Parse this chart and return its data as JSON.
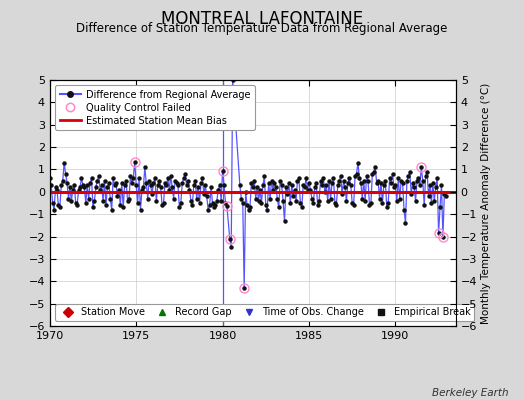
{
  "title": "MONTREAL LAFONTAINE",
  "subtitle": "Difference of Station Temperature Data from Regional Average",
  "ylabel": "Monthly Temperature Anomaly Difference (°C)",
  "xlim": [
    1970,
    1993.5
  ],
  "ylim": [
    -6,
    5
  ],
  "yticks": [
    -6,
    -5,
    -4,
    -3,
    -2,
    -1,
    0,
    1,
    2,
    3,
    4,
    5
  ],
  "xticks": [
    1970,
    1975,
    1980,
    1985,
    1990
  ],
  "bias_line_y": 0.0,
  "bias_line_color": "#dd0000",
  "line_color": "#5555ff",
  "dot_color": "#111111",
  "qc_fail_color": "#ff88cc",
  "background_color": "#d8d8d8",
  "plot_bg_color": "#ffffff",
  "title_fontsize": 12,
  "subtitle_fontsize": 8.5,
  "tick_fontsize": 8,
  "ylabel_fontsize": 7.5,
  "watermark": "Berkeley Earth",
  "legend1_entries": [
    {
      "label": "Difference from Regional Average"
    },
    {
      "label": "Quality Control Failed"
    },
    {
      "label": "Estimated Station Mean Bias"
    }
  ],
  "legend2_entries": [
    {
      "label": "Station Move",
      "marker": "D",
      "color": "#cc0000"
    },
    {
      "label": "Record Gap",
      "marker": "^",
      "color": "#007700"
    },
    {
      "label": "Time of Obs. Change",
      "marker": "v",
      "color": "#3333cc"
    },
    {
      "label": "Empirical Break",
      "marker": "s",
      "color": "#111111"
    }
  ],
  "time_of_obs_change_x": 1980.0,
  "qc_fail_points": [
    [
      1974.917,
      1.35
    ],
    [
      1980.0,
      0.95
    ],
    [
      1980.25,
      -0.65
    ],
    [
      1980.417,
      -2.1
    ],
    [
      1981.25,
      -4.3
    ],
    [
      1991.5,
      1.1
    ],
    [
      1992.5,
      -1.85
    ],
    [
      1992.75,
      -2.0
    ]
  ],
  "monthly_data": [
    [
      1970.0,
      0.6
    ],
    [
      1970.083,
      0.3
    ],
    [
      1970.167,
      -0.5
    ],
    [
      1970.25,
      -0.8
    ],
    [
      1970.333,
      0.2
    ],
    [
      1970.417,
      0.1
    ],
    [
      1970.5,
      -0.6
    ],
    [
      1970.583,
      -0.7
    ],
    [
      1970.667,
      0.3
    ],
    [
      1970.75,
      0.5
    ],
    [
      1970.833,
      1.3
    ],
    [
      1970.917,
      0.8
    ],
    [
      1971.0,
      0.4
    ],
    [
      1971.083,
      -0.3
    ],
    [
      1971.167,
      0.2
    ],
    [
      1971.25,
      -0.4
    ],
    [
      1971.333,
      0.1
    ],
    [
      1971.417,
      0.3
    ],
    [
      1971.5,
      -0.5
    ],
    [
      1971.583,
      -0.6
    ],
    [
      1971.667,
      0.1
    ],
    [
      1971.75,
      0.2
    ],
    [
      1971.833,
      0.6
    ],
    [
      1971.917,
      0.3
    ],
    [
      1972.0,
      0.2
    ],
    [
      1972.083,
      -0.5
    ],
    [
      1972.167,
      0.3
    ],
    [
      1972.25,
      -0.3
    ],
    [
      1972.333,
      0.4
    ],
    [
      1972.417,
      0.6
    ],
    [
      1972.5,
      -0.7
    ],
    [
      1972.583,
      -0.4
    ],
    [
      1972.667,
      0.2
    ],
    [
      1972.75,
      0.5
    ],
    [
      1972.833,
      0.7
    ],
    [
      1972.917,
      0.1
    ],
    [
      1973.0,
      0.3
    ],
    [
      1973.083,
      -0.4
    ],
    [
      1973.167,
      0.5
    ],
    [
      1973.25,
      -0.6
    ],
    [
      1973.333,
      0.2
    ],
    [
      1973.417,
      0.4
    ],
    [
      1973.5,
      -0.3
    ],
    [
      1973.583,
      -0.8
    ],
    [
      1973.667,
      0.6
    ],
    [
      1973.75,
      0.3
    ],
    [
      1973.833,
      0.4
    ],
    [
      1973.917,
      -0.2
    ],
    [
      1974.0,
      0.1
    ],
    [
      1974.083,
      -0.6
    ],
    [
      1974.167,
      0.4
    ],
    [
      1974.25,
      -0.7
    ],
    [
      1974.333,
      0.3
    ],
    [
      1974.417,
      0.5
    ],
    [
      1974.5,
      -0.4
    ],
    [
      1974.583,
      -0.3
    ],
    [
      1974.667,
      0.7
    ],
    [
      1974.75,
      0.4
    ],
    [
      1974.833,
      0.6
    ],
    [
      1974.917,
      1.35
    ],
    [
      1975.0,
      0.3
    ],
    [
      1975.083,
      -0.5
    ],
    [
      1975.167,
      0.6
    ],
    [
      1975.25,
      -0.8
    ],
    [
      1975.333,
      0.1
    ],
    [
      1975.417,
      0.2
    ],
    [
      1975.5,
      1.1
    ],
    [
      1975.583,
      0.4
    ],
    [
      1975.667,
      -0.3
    ],
    [
      1975.75,
      0.5
    ],
    [
      1975.833,
      0.3
    ],
    [
      1975.917,
      -0.1
    ],
    [
      1976.0,
      0.4
    ],
    [
      1976.083,
      0.6
    ],
    [
      1976.167,
      -0.4
    ],
    [
      1976.25,
      0.3
    ],
    [
      1976.333,
      0.5
    ],
    [
      1976.417,
      0.2
    ],
    [
      1976.5,
      -0.6
    ],
    [
      1976.583,
      -0.5
    ],
    [
      1976.667,
      0.4
    ],
    [
      1976.75,
      0.3
    ],
    [
      1976.833,
      0.6
    ],
    [
      1976.917,
      0.1
    ],
    [
      1977.0,
      0.7
    ],
    [
      1977.083,
      0.2
    ],
    [
      1977.167,
      -0.3
    ],
    [
      1977.25,
      0.5
    ],
    [
      1977.333,
      0.4
    ],
    [
      1977.417,
      0.3
    ],
    [
      1977.5,
      -0.7
    ],
    [
      1977.583,
      -0.5
    ],
    [
      1977.667,
      0.4
    ],
    [
      1977.75,
      0.6
    ],
    [
      1977.833,
      0.8
    ],
    [
      1977.917,
      0.3
    ],
    [
      1978.0,
      0.5
    ],
    [
      1978.083,
      0.1
    ],
    [
      1978.167,
      -0.4
    ],
    [
      1978.25,
      -0.6
    ],
    [
      1978.333,
      0.3
    ],
    [
      1978.417,
      0.5
    ],
    [
      1978.5,
      -0.3
    ],
    [
      1978.583,
      0.2
    ],
    [
      1978.667,
      -0.5
    ],
    [
      1978.75,
      0.4
    ],
    [
      1978.833,
      0.6
    ],
    [
      1978.917,
      -0.1
    ],
    [
      1979.0,
      0.3
    ],
    [
      1979.083,
      -0.2
    ],
    [
      1979.167,
      -0.8
    ],
    [
      1979.25,
      -0.6
    ],
    [
      1979.333,
      0.2
    ],
    [
      1979.417,
      -0.5
    ],
    [
      1979.5,
      -0.7
    ],
    [
      1979.583,
      -0.6
    ],
    [
      1979.667,
      -0.4
    ],
    [
      1979.75,
      0.1
    ],
    [
      1979.833,
      0.3
    ],
    [
      1979.917,
      -0.4
    ],
    [
      1980.0,
      0.95
    ],
    [
      1980.083,
      0.3
    ],
    [
      1980.167,
      -0.5
    ],
    [
      1980.25,
      -0.65
    ],
    [
      1980.417,
      -2.1
    ],
    [
      1980.5,
      -2.45
    ],
    [
      1980.583,
      5.0
    ],
    [
      1981.0,
      0.3
    ],
    [
      1981.083,
      -0.3
    ],
    [
      1981.167,
      -0.5
    ],
    [
      1981.25,
      -4.3
    ],
    [
      1981.333,
      0.0
    ],
    [
      1981.417,
      -0.6
    ],
    [
      1981.5,
      -0.8
    ],
    [
      1981.583,
      -0.7
    ],
    [
      1981.667,
      0.4
    ],
    [
      1981.75,
      0.2
    ],
    [
      1981.833,
      0.5
    ],
    [
      1981.917,
      -0.3
    ],
    [
      1982.0,
      0.2
    ],
    [
      1982.083,
      -0.4
    ],
    [
      1982.167,
      0.1
    ],
    [
      1982.25,
      -0.5
    ],
    [
      1982.333,
      0.3
    ],
    [
      1982.417,
      0.7
    ],
    [
      1982.5,
      -0.6
    ],
    [
      1982.583,
      -0.8
    ],
    [
      1982.667,
      0.4
    ],
    [
      1982.75,
      -0.3
    ],
    [
      1982.833,
      0.5
    ],
    [
      1982.917,
      0.1
    ],
    [
      1983.0,
      0.4
    ],
    [
      1983.083,
      0.2
    ],
    [
      1983.167,
      -0.3
    ],
    [
      1983.25,
      -0.7
    ],
    [
      1983.333,
      0.5
    ],
    [
      1983.417,
      0.3
    ],
    [
      1983.5,
      -0.4
    ],
    [
      1983.583,
      -1.3
    ],
    [
      1983.667,
      0.2
    ],
    [
      1983.75,
      -0.1
    ],
    [
      1983.833,
      0.4
    ],
    [
      1983.917,
      -0.5
    ],
    [
      1984.0,
      0.3
    ],
    [
      1984.083,
      -0.2
    ],
    [
      1984.167,
      0.1
    ],
    [
      1984.25,
      -0.4
    ],
    [
      1984.333,
      0.5
    ],
    [
      1984.417,
      0.6
    ],
    [
      1984.5,
      -0.5
    ],
    [
      1984.583,
      -0.7
    ],
    [
      1984.667,
      0.3
    ],
    [
      1984.75,
      0.2
    ],
    [
      1984.833,
      0.6
    ],
    [
      1984.917,
      0.1
    ],
    [
      1985.0,
      0.4
    ],
    [
      1985.083,
      0.1
    ],
    [
      1985.167,
      -0.3
    ],
    [
      1985.25,
      -0.5
    ],
    [
      1985.333,
      0.2
    ],
    [
      1985.417,
      0.4
    ],
    [
      1985.5,
      -0.6
    ],
    [
      1985.583,
      -0.4
    ],
    [
      1985.667,
      0.5
    ],
    [
      1985.75,
      0.3
    ],
    [
      1985.833,
      0.6
    ],
    [
      1985.917,
      0.0
    ],
    [
      1986.0,
      0.3
    ],
    [
      1986.083,
      -0.4
    ],
    [
      1986.167,
      0.5
    ],
    [
      1986.25,
      -0.3
    ],
    [
      1986.333,
      0.4
    ],
    [
      1986.417,
      0.6
    ],
    [
      1986.5,
      -0.5
    ],
    [
      1986.583,
      -0.6
    ],
    [
      1986.667,
      0.3
    ],
    [
      1986.75,
      0.5
    ],
    [
      1986.833,
      0.7
    ],
    [
      1986.917,
      -0.1
    ],
    [
      1987.0,
      0.5
    ],
    [
      1987.083,
      0.2
    ],
    [
      1987.167,
      -0.4
    ],
    [
      1987.25,
      0.4
    ],
    [
      1987.333,
      0.6
    ],
    [
      1987.417,
      0.3
    ],
    [
      1987.5,
      -0.5
    ],
    [
      1987.583,
      -0.6
    ],
    [
      1987.667,
      0.7
    ],
    [
      1987.75,
      0.8
    ],
    [
      1987.833,
      1.3
    ],
    [
      1987.917,
      0.6
    ],
    [
      1988.0,
      0.4
    ],
    [
      1988.083,
      -0.3
    ],
    [
      1988.167,
      0.5
    ],
    [
      1988.25,
      -0.4
    ],
    [
      1988.333,
      0.7
    ],
    [
      1988.417,
      0.5
    ],
    [
      1988.5,
      -0.6
    ],
    [
      1988.583,
      -0.5
    ],
    [
      1988.667,
      0.8
    ],
    [
      1988.75,
      0.9
    ],
    [
      1988.833,
      1.1
    ],
    [
      1988.917,
      0.4
    ],
    [
      1989.0,
      0.5
    ],
    [
      1989.083,
      -0.3
    ],
    [
      1989.167,
      0.4
    ],
    [
      1989.25,
      -0.5
    ],
    [
      1989.333,
      0.3
    ],
    [
      1989.417,
      0.5
    ],
    [
      1989.5,
      -0.7
    ],
    [
      1989.583,
      -0.5
    ],
    [
      1989.667,
      0.6
    ],
    [
      1989.75,
      0.4
    ],
    [
      1989.833,
      0.8
    ],
    [
      1989.917,
      0.2
    ],
    [
      1990.0,
      0.3
    ],
    [
      1990.083,
      -0.4
    ],
    [
      1990.167,
      0.6
    ],
    [
      1990.25,
      -0.3
    ],
    [
      1990.333,
      0.5
    ],
    [
      1990.417,
      0.4
    ],
    [
      1990.5,
      -0.8
    ],
    [
      1990.583,
      -1.4
    ],
    [
      1990.667,
      0.5
    ],
    [
      1990.75,
      0.7
    ],
    [
      1990.833,
      0.9
    ],
    [
      1990.917,
      -0.1
    ],
    [
      1991.0,
      0.4
    ],
    [
      1991.083,
      0.2
    ],
    [
      1991.167,
      -0.4
    ],
    [
      1991.25,
      0.5
    ],
    [
      1991.333,
      0.6
    ],
    [
      1991.417,
      0.3
    ],
    [
      1991.5,
      1.1
    ],
    [
      1991.583,
      0.5
    ],
    [
      1991.667,
      -0.6
    ],
    [
      1991.75,
      0.7
    ],
    [
      1991.833,
      0.9
    ],
    [
      1991.917,
      -0.2
    ],
    [
      1992.0,
      0.3
    ],
    [
      1992.083,
      -0.5
    ],
    [
      1992.167,
      0.4
    ],
    [
      1992.25,
      -0.4
    ],
    [
      1992.333,
      0.2
    ],
    [
      1992.417,
      0.6
    ],
    [
      1992.5,
      -1.85
    ],
    [
      1992.583,
      -0.7
    ],
    [
      1992.667,
      0.3
    ],
    [
      1992.75,
      -2.0
    ],
    [
      1992.833,
      -0.1
    ],
    [
      1992.917,
      -0.2
    ]
  ]
}
